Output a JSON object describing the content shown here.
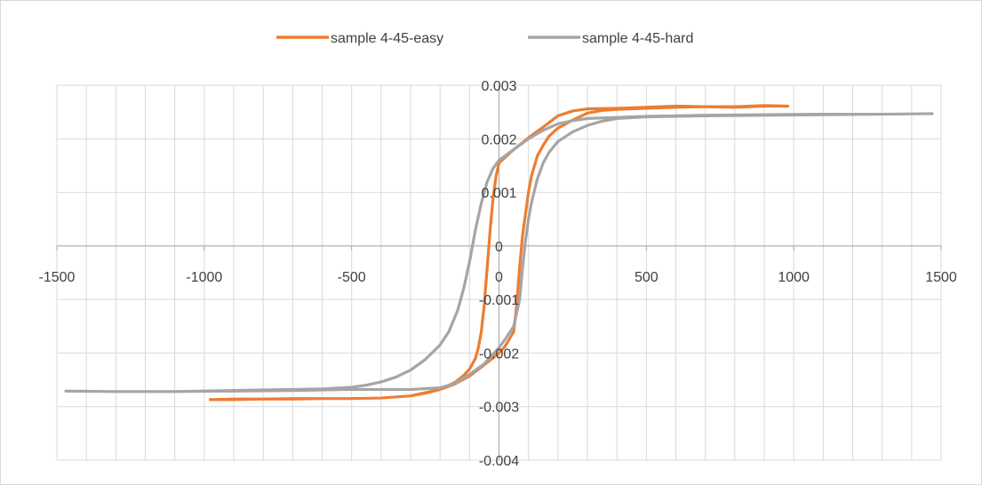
{
  "chart_data": {
    "type": "line",
    "title": "",
    "xlabel": "",
    "ylabel": "",
    "xlim": [
      -1500,
      1500
    ],
    "ylim": [
      -0.004,
      0.003
    ],
    "x_major_ticks": [
      -1500,
      -1000,
      -500,
      0,
      500,
      1000,
      1500
    ],
    "x_tick_labels": [
      "-1500",
      "-1000",
      "-500",
      "0",
      "500",
      "1000",
      "1500"
    ],
    "y_major_ticks": [
      0.003,
      0.002,
      0.001,
      0,
      -0.001,
      -0.002,
      -0.003,
      -0.004
    ],
    "y_tick_labels": [
      "0.003",
      "0.002",
      "0.001",
      "0",
      "-0.001",
      "-0.002",
      "-0.003",
      "-0.004"
    ],
    "grid": true,
    "minor_grid_x_step": 100,
    "legend_position": "top",
    "series": [
      {
        "name": "sample 4-45-easy",
        "color": "#ed7d31",
        "points": [
          [
            -980,
            -0.00287
          ],
          [
            -900,
            -0.00287
          ],
          [
            -800,
            -0.00286
          ],
          [
            -700,
            -0.00286
          ],
          [
            -600,
            -0.00285
          ],
          [
            -500,
            -0.00285
          ],
          [
            -400,
            -0.00284
          ],
          [
            -300,
            -0.0028
          ],
          [
            -200,
            -0.00268
          ],
          [
            -150,
            -0.00255
          ],
          [
            -120,
            -0.00242
          ],
          [
            -100,
            -0.0023
          ],
          [
            -80,
            -0.0021
          ],
          [
            -70,
            -0.0019
          ],
          [
            -60,
            -0.0016
          ],
          [
            -50,
            -0.0011
          ],
          [
            -40,
            -0.0004
          ],
          [
            -30,
            0.0003
          ],
          [
            -20,
            0.0009
          ],
          [
            -10,
            0.0013
          ],
          [
            0,
            0.00155
          ],
          [
            50,
            0.0018
          ],
          [
            100,
            0.00202
          ],
          [
            150,
            0.00222
          ],
          [
            200,
            0.00243
          ],
          [
            250,
            0.00252
          ],
          [
            300,
            0.00256
          ],
          [
            400,
            0.00257
          ],
          [
            500,
            0.00259
          ],
          [
            600,
            0.00261
          ],
          [
            700,
            0.0026
          ],
          [
            800,
            0.0026
          ],
          [
            900,
            0.00262
          ],
          [
            980,
            0.00261
          ],
          [
            900,
            0.00261
          ],
          [
            800,
            0.00259
          ],
          [
            700,
            0.0026
          ],
          [
            600,
            0.00259
          ],
          [
            500,
            0.00257
          ],
          [
            400,
            0.00255
          ],
          [
            350,
            0.00253
          ],
          [
            300,
            0.00248
          ],
          [
            250,
            0.00235
          ],
          [
            200,
            0.0022
          ],
          [
            170,
            0.00205
          ],
          [
            150,
            0.00188
          ],
          [
            130,
            0.00168
          ],
          [
            110,
            0.0013
          ],
          [
            100,
            0.001
          ],
          [
            90,
            0.0006
          ],
          [
            80,
            0.0002
          ],
          [
            70,
            -0.0004
          ],
          [
            60,
            -0.0011
          ],
          [
            50,
            -0.0016
          ],
          [
            20,
            -0.00188
          ],
          [
            0,
            -0.002
          ],
          [
            -50,
            -0.00222
          ],
          [
            -100,
            -0.00243
          ],
          [
            -150,
            -0.00258
          ],
          [
            -200,
            -0.00268
          ],
          [
            -250,
            -0.00275
          ],
          [
            -300,
            -0.0028
          ],
          [
            -400,
            -0.00284
          ],
          [
            -500,
            -0.00285
          ],
          [
            -600,
            -0.00285
          ],
          [
            -700,
            -0.00285
          ],
          [
            -800,
            -0.00286
          ],
          [
            -900,
            -0.00286
          ],
          [
            -980,
            -0.00287
          ]
        ]
      },
      {
        "name": "sample 4-45-hard",
        "color": "#a5a5a5",
        "points": [
          [
            -1470,
            -0.00271
          ],
          [
            -1300,
            -0.00272
          ],
          [
            -1100,
            -0.00272
          ],
          [
            -1000,
            -0.00271
          ],
          [
            -900,
            -0.0027
          ],
          [
            -800,
            -0.00269
          ],
          [
            -700,
            -0.00268
          ],
          [
            -600,
            -0.00267
          ],
          [
            -500,
            -0.00264
          ],
          [
            -450,
            -0.0026
          ],
          [
            -400,
            -0.00254
          ],
          [
            -350,
            -0.00245
          ],
          [
            -300,
            -0.00232
          ],
          [
            -250,
            -0.00212
          ],
          [
            -200,
            -0.00185
          ],
          [
            -170,
            -0.0016
          ],
          [
            -140,
            -0.0012
          ],
          [
            -120,
            -0.0008
          ],
          [
            -100,
            -0.0003
          ],
          [
            -90,
            0.0
          ],
          [
            -80,
            0.0003
          ],
          [
            -60,
            0.0008
          ],
          [
            -40,
            0.0012
          ],
          [
            -20,
            0.00145
          ],
          [
            0,
            0.0016
          ],
          [
            50,
            0.0018
          ],
          [
            100,
            0.002
          ],
          [
            150,
            0.00216
          ],
          [
            200,
            0.00228
          ],
          [
            250,
            0.00234
          ],
          [
            300,
            0.00238
          ],
          [
            400,
            0.0024
          ],
          [
            500,
            0.00242
          ],
          [
            700,
            0.00244
          ],
          [
            900,
            0.00245
          ],
          [
            1100,
            0.00246
          ],
          [
            1300,
            0.00246
          ],
          [
            1470,
            0.00247
          ],
          [
            1300,
            0.00246
          ],
          [
            1100,
            0.00245
          ],
          [
            900,
            0.00244
          ],
          [
            700,
            0.00243
          ],
          [
            500,
            0.00241
          ],
          [
            400,
            0.00238
          ],
          [
            350,
            0.00233
          ],
          [
            300,
            0.00225
          ],
          [
            250,
            0.00213
          ],
          [
            200,
            0.00195
          ],
          [
            170,
            0.00175
          ],
          [
            150,
            0.00155
          ],
          [
            130,
            0.00125
          ],
          [
            110,
            0.0008
          ],
          [
            100,
            0.0005
          ],
          [
            90,
            0.0001
          ],
          [
            80,
            -0.0004
          ],
          [
            70,
            -0.001
          ],
          [
            50,
            -0.0015
          ],
          [
            20,
            -0.00175
          ],
          [
            0,
            -0.0019
          ],
          [
            -50,
            -0.0022
          ],
          [
            -100,
            -0.0024
          ],
          [
            -150,
            -0.00257
          ],
          [
            -200,
            -0.00265
          ],
          [
            -300,
            -0.00268
          ],
          [
            -400,
            -0.00268
          ],
          [
            -500,
            -0.00268
          ],
          [
            -700,
            -0.0027
          ],
          [
            -900,
            -0.00271
          ],
          [
            -1100,
            -0.00272
          ],
          [
            -1300,
            -0.00272
          ],
          [
            -1470,
            -0.00271
          ]
        ]
      }
    ]
  }
}
